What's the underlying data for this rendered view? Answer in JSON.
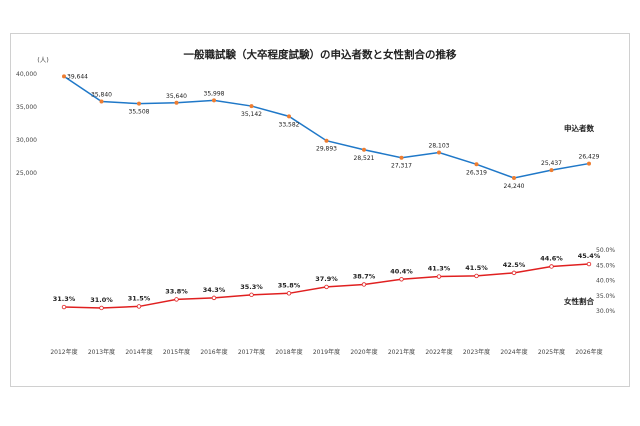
{
  "chart_data": {
    "type": "line",
    "title": "一般職試験（大卒程度試験）の申込者数と女性割合の推移",
    "y_unit_label": "(人)",
    "categories": [
      "2012年度",
      "2013年度",
      "2014年度",
      "2015年度",
      "2016年度",
      "2017年度",
      "2018年度",
      "2019年度",
      "2020年度",
      "2021年度",
      "2022年度",
      "2023年度",
      "2024年度",
      "2025年度",
      "2026年度"
    ],
    "series": [
      {
        "name": "申込者数",
        "color": "#1f78c8",
        "marker_color": "#ed7d31",
        "axis": "left",
        "values": [
          39644,
          35840,
          35508,
          35640,
          35998,
          35142,
          33582,
          29893,
          28521,
          27317,
          28103,
          26319,
          24240,
          25437,
          26429
        ],
        "labels": [
          "39,644",
          "35,840",
          "35,508",
          "35,640",
          "35,998",
          "35,142",
          "33,582",
          "29,893",
          "28,521",
          "27,317",
          "28,103",
          "26,319",
          "24,240",
          "25,437",
          "26,429"
        ]
      },
      {
        "name": "女性割合",
        "color": "#e02020",
        "marker_color": "#ed7d31",
        "axis": "right",
        "values": [
          31.3,
          31.0,
          31.5,
          33.8,
          34.3,
          35.3,
          35.8,
          37.9,
          38.7,
          40.4,
          41.3,
          41.5,
          42.5,
          44.6,
          45.4
        ],
        "labels": [
          "31.3%",
          "31.0%",
          "31.5%",
          "33.8%",
          "34.3%",
          "35.3%",
          "35.8%",
          "37.9%",
          "38.7%",
          "40.4%",
          "41.3%",
          "41.5%",
          "42.5%",
          "44.6%",
          "45.4%"
        ]
      }
    ],
    "left_axis": {
      "ticks": [
        "40,000",
        "35,000",
        "30,000",
        "25,000"
      ],
      "tick_values": [
        40000,
        35000,
        30000,
        25000
      ],
      "ylim": [
        25000,
        40000
      ]
    },
    "right_axis": {
      "ticks": [
        "50.0%",
        "45.0%",
        "40.0%",
        "35.0%",
        "30.0%"
      ],
      "tick_values": [
        50,
        45,
        40,
        35,
        30
      ],
      "ylim": [
        30,
        50
      ]
    },
    "grid": false,
    "legend": "inline labels at right"
  }
}
